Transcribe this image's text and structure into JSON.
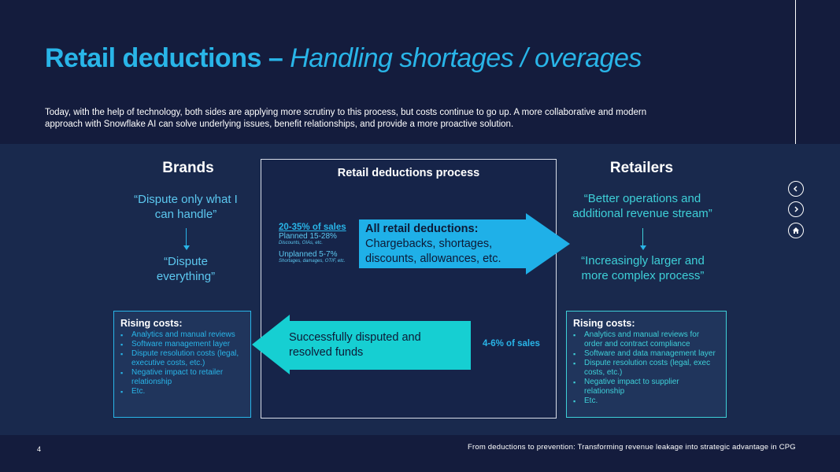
{
  "header": {
    "title_main": "Retail deductions – ",
    "title_sub": "Handling shortages / overages",
    "intro": "Today, with the help of technology, both sides are applying more scrutiny to this process, but costs continue to go up. A more collaborative and modern approach with Snowflake AI can solve underlying issues, benefit relationships, and provide a more proactive solution."
  },
  "brands": {
    "heading": "Brands",
    "quote1": "“Dispute only what I can handle”",
    "quote2": "“Dispute everything”",
    "costs_title": "Rising costs:",
    "costs": [
      "Analytics and manual reviews",
      "Software management layer",
      "Dispute resolution costs (legal, executive costs, etc.)",
      "Negative impact to retailer relationship",
      "Etc."
    ]
  },
  "process": {
    "heading": "Retail deductions process",
    "pct_main": "20-35% of sales",
    "planned": "Planned 15-28%",
    "planned_note": "Discounts, OIAs, etc.",
    "unplanned": "Unplanned 5-7%",
    "unplanned_note": "Shortages, damages, OTIF, etc.",
    "arrow_right_bold": "All retail deductions:",
    "arrow_right_text": "Chargebacks, shortages, discounts, allowances, etc.",
    "arrow_left_text": "Successfully disputed and resolved funds",
    "resolved_pct": "4-6% of sales"
  },
  "retailers": {
    "heading": "Retailers",
    "quote1": "“Better operations and additional revenue stream”",
    "quote2": "“Increasingly larger and more complex process”",
    "costs_title": "Rising costs:",
    "costs": [
      "Analytics and manual reviews for order and contract compliance",
      "Software and data management layer",
      "Dispute resolution costs (legal, exec costs, etc.)",
      "Negative impact to supplier relationship",
      "Etc."
    ]
  },
  "footer": {
    "page_number": "4",
    "caption": "From deductions to prevention: Transforming revenue leakage into strategic advantage in CPG"
  },
  "nav": {
    "icons": [
      "chevron-left-icon",
      "chevron-right-icon",
      "home-icon"
    ]
  },
  "colors": {
    "background": "#141c3d",
    "band": "#19294d",
    "accent_blue": "#29b5e8",
    "accent_teal": "#3ed0d8"
  }
}
